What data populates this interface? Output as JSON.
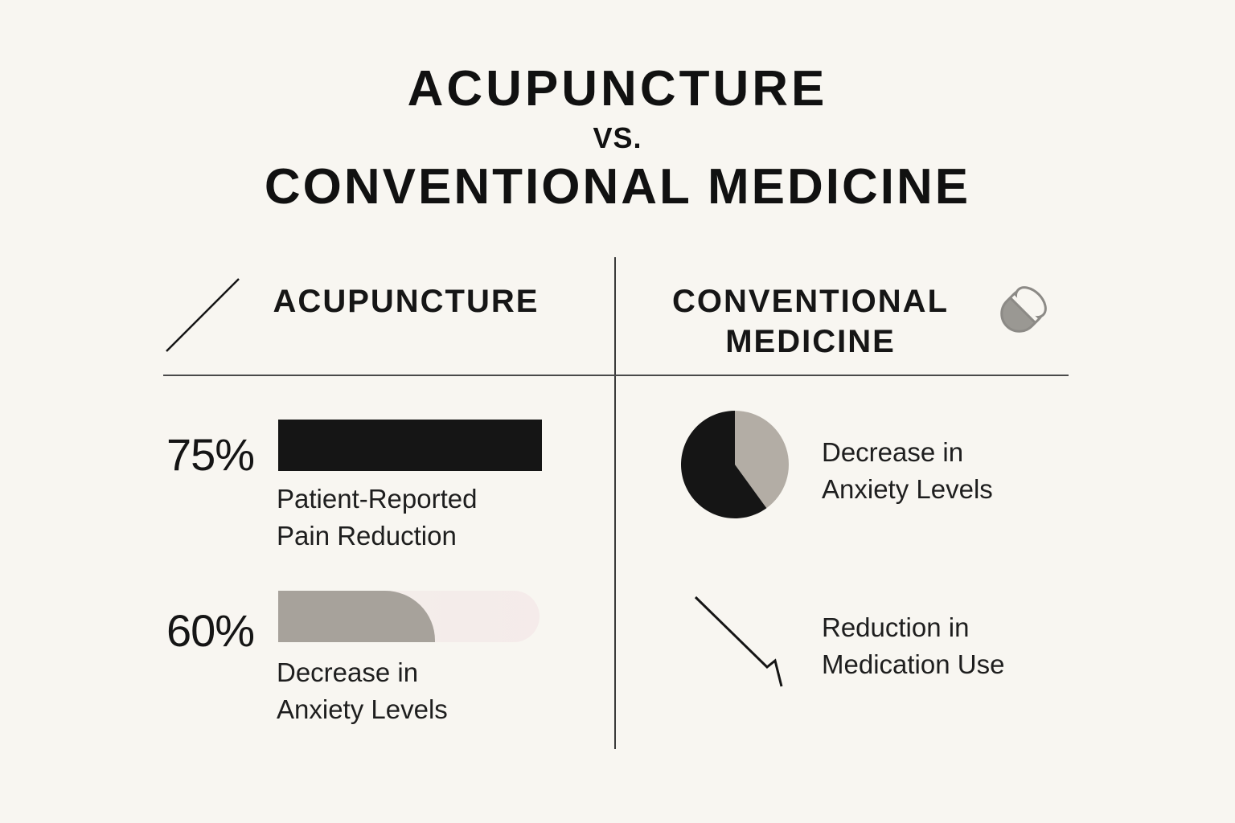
{
  "title": {
    "main": "ACUPUNCTURE",
    "vs": "VS.",
    "sub": "CONVENTIONAL MEDICINE"
  },
  "columns": {
    "left": {
      "heading": "ACUPUNCTURE",
      "icon": "needle-icon"
    },
    "right": {
      "heading": "CONVENTIONAL MEDICINE",
      "icon": "pill-capsule-icon"
    }
  },
  "left_stats": [
    {
      "value": "75%",
      "fraction": 0.75,
      "label": "Patient-Reported Pain Reduction",
      "color": "#151515"
    },
    {
      "value": "60%",
      "fraction": 0.6,
      "label": "Decrease in Anxiety Levels",
      "color": "#a7a29b"
    }
  ],
  "right_stats": [
    {
      "label": "Decrease in Anxiety Levels",
      "icon": "pie-chart-icon",
      "slices": [
        0.6,
        0.4
      ],
      "colors": [
        "#151515",
        "#b3ada5"
      ]
    },
    {
      "label": "Reduction in Medication Use",
      "icon": "declining-line-icon"
    }
  ],
  "colors": {
    "background": "#f8f6f1",
    "text": "#171717",
    "accent_dark": "#151515",
    "accent_gray": "#a7a29b"
  }
}
